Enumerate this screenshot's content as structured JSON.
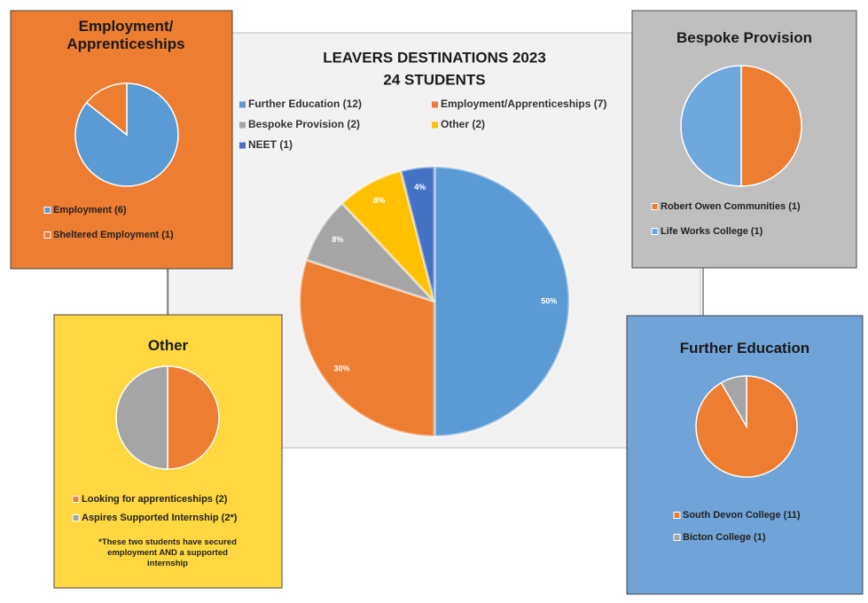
{
  "chart_data": [
    {
      "type": "pie",
      "title": "LEAVERS DESTINATIONS 2023",
      "subtitle": "24 STUDENTS",
      "categories": [
        "Further Education (12)",
        "Employment/Apprenticeships (7)",
        "Bespoke Provision (2)",
        "Other (2)",
        "NEET (1)"
      ],
      "values": [
        50,
        30,
        8,
        8,
        4
      ],
      "value_labels": [
        "50%",
        "30%",
        "8%",
        "8%",
        "4%"
      ],
      "colors": [
        "#5b9bd5",
        "#ed7d31",
        "#a5a5a5",
        "#ffc000",
        "#4472c4"
      ]
    },
    {
      "type": "pie",
      "title": "Employment/ Apprenticeships",
      "categories": [
        "Employment (6)",
        "Sheltered Employment (1)"
      ],
      "values": [
        6,
        1
      ],
      "colors": [
        "#5b9bd5",
        "#ed7d31"
      ]
    },
    {
      "type": "pie",
      "title": "Bespoke Provision",
      "categories": [
        "Robert Owen Communities (1)",
        "Life Works College (1)"
      ],
      "values": [
        1,
        1
      ],
      "colors": [
        "#ed7d31",
        "#6fa8dc"
      ]
    },
    {
      "type": "pie",
      "title": "Other",
      "categories": [
        "Looking for apprenticeships (2)",
        "Aspires Supported Internship (2*)"
      ],
      "values": [
        2,
        2
      ],
      "colors": [
        "#ed7d31",
        "#a5a5a5"
      ],
      "note": "*These two students have secured employment AND a supported internship"
    },
    {
      "type": "pie",
      "title": "Further Education",
      "categories": [
        "South Devon College (11)",
        "Bicton College (1)"
      ],
      "values": [
        11,
        1
      ],
      "colors": [
        "#ed7d31",
        "#a5a5a5"
      ]
    }
  ]
}
